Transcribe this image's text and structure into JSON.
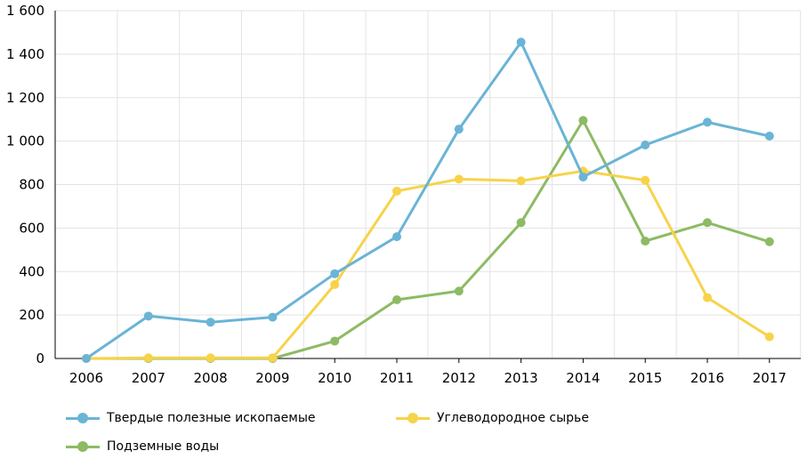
{
  "chart_data": {
    "type": "line",
    "title": "",
    "xlabel": "",
    "ylabel": "",
    "x": [
      "2006",
      "2007",
      "2008",
      "2009",
      "2010",
      "2011",
      "2012",
      "2013",
      "2014",
      "2015",
      "2016",
      "2017"
    ],
    "ylim": [
      0,
      1600
    ],
    "yticks": [
      0,
      200,
      400,
      600,
      800,
      1000,
      1200,
      1400,
      1600
    ],
    "ytick_labels": [
      "0",
      "200",
      "400",
      "600",
      "800",
      "1 000",
      "1 200",
      "1 400",
      "1 600"
    ],
    "grid": true,
    "legend_position": "bottom",
    "series": [
      {
        "name": "Твердые полезные ископаемые",
        "color": "#6ab4d6",
        "values": [
          0,
          195,
          167,
          190,
          390,
          560,
          1055,
          1455,
          835,
          982,
          1087,
          1023
        ]
      },
      {
        "name": "Углеводородное сырье",
        "color": "#f7d34a",
        "values": [
          0,
          3,
          3,
          3,
          340,
          770,
          825,
          817,
          862,
          820,
          280,
          100
        ]
      },
      {
        "name": "Подземные воды",
        "color": "#8dbb64",
        "values": [
          0,
          0,
          0,
          0,
          80,
          270,
          310,
          625,
          1095,
          540,
          625,
          537
        ]
      }
    ]
  }
}
